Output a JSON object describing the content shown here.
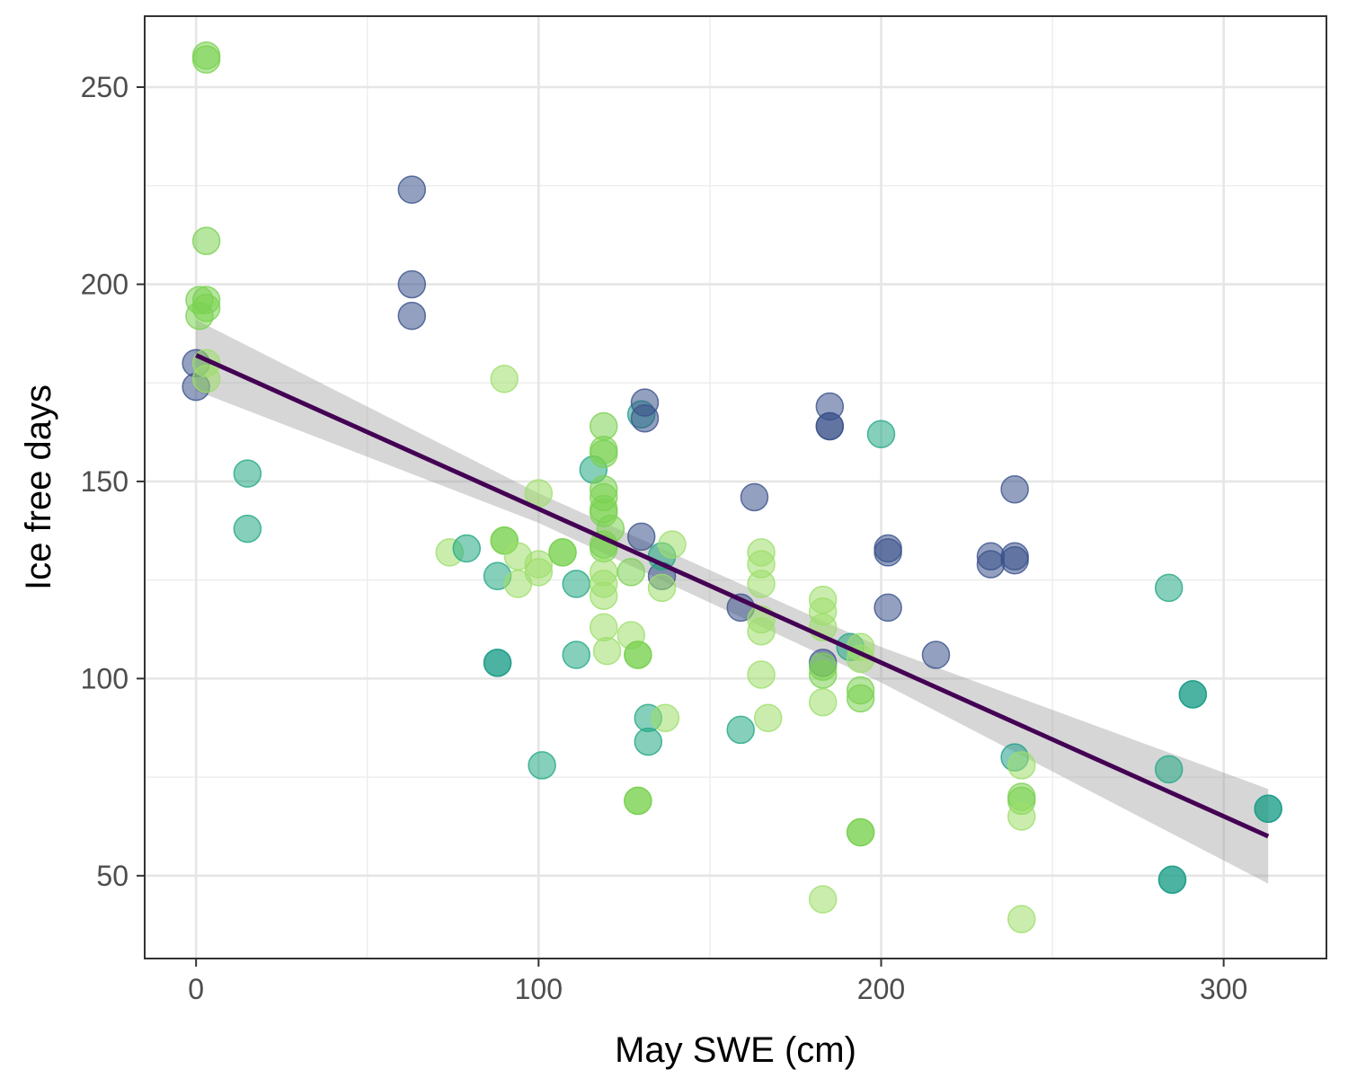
{
  "chart_data": {
    "type": "scatter",
    "title": "",
    "xlabel": "May SWE (cm)",
    "ylabel": "Ice free days",
    "xlim": [
      -15,
      330
    ],
    "ylim": [
      29,
      268
    ],
    "x_ticks": [
      0,
      100,
      200,
      300
    ],
    "y_ticks": [
      50,
      100,
      150,
      200,
      250
    ],
    "x_minor_ticks": [
      50,
      150,
      250
    ],
    "y_minor_ticks": [
      75,
      125,
      175,
      225
    ],
    "grid": true,
    "legend": "none",
    "point_alpha": 0.55,
    "points": [
      {
        "x": 0,
        "y": 180,
        "color": "#3b528b"
      },
      {
        "x": 0,
        "y": 174,
        "color": "#3b528b"
      },
      {
        "x": 1,
        "y": 196,
        "color": "#7ad151"
      },
      {
        "x": 1,
        "y": 192,
        "color": "#7ad151"
      },
      {
        "x": 3,
        "y": 258,
        "color": "#7ad151"
      },
      {
        "x": 3,
        "y": 257,
        "color": "#7ad151"
      },
      {
        "x": 3,
        "y": 211,
        "color": "#7ad151"
      },
      {
        "x": 3,
        "y": 196,
        "color": "#7ad151"
      },
      {
        "x": 3,
        "y": 194,
        "color": "#7ad151"
      },
      {
        "x": 3,
        "y": 180,
        "color": "#9ede6c"
      },
      {
        "x": 3,
        "y": 176,
        "color": "#9ede6c"
      },
      {
        "x": 15,
        "y": 152,
        "color": "#22a884"
      },
      {
        "x": 15,
        "y": 138,
        "color": "#22a884"
      },
      {
        "x": 63,
        "y": 224,
        "color": "#3b528b"
      },
      {
        "x": 63,
        "y": 200,
        "color": "#3b528b"
      },
      {
        "x": 63,
        "y": 192,
        "color": "#3b528b"
      },
      {
        "x": 74,
        "y": 132,
        "color": "#9ede6c"
      },
      {
        "x": 79,
        "y": 133,
        "color": "#22a884"
      },
      {
        "x": 88,
        "y": 126,
        "color": "#22a884"
      },
      {
        "x": 88,
        "y": 104,
        "color": "#1f9e89"
      },
      {
        "x": 88,
        "y": 104,
        "color": "#1f9e89"
      },
      {
        "x": 90,
        "y": 176,
        "color": "#9ede6c"
      },
      {
        "x": 90,
        "y": 135,
        "color": "#7ad151"
      },
      {
        "x": 90,
        "y": 135,
        "color": "#7ad151"
      },
      {
        "x": 94,
        "y": 131,
        "color": "#9ede6c"
      },
      {
        "x": 94,
        "y": 124,
        "color": "#9ede6c"
      },
      {
        "x": 100,
        "y": 147,
        "color": "#9ede6c"
      },
      {
        "x": 100,
        "y": 129,
        "color": "#9ede6c"
      },
      {
        "x": 100,
        "y": 127,
        "color": "#9ede6c"
      },
      {
        "x": 101,
        "y": 78,
        "color": "#22a884"
      },
      {
        "x": 107,
        "y": 132,
        "color": "#7ad151"
      },
      {
        "x": 107,
        "y": 132,
        "color": "#7ad151"
      },
      {
        "x": 111,
        "y": 124,
        "color": "#22a884"
      },
      {
        "x": 111,
        "y": 106,
        "color": "#22a884"
      },
      {
        "x": 116,
        "y": 153,
        "color": "#22a884"
      },
      {
        "x": 119,
        "y": 164,
        "color": "#7ad151"
      },
      {
        "x": 119,
        "y": 158,
        "color": "#7ad151"
      },
      {
        "x": 119,
        "y": 157,
        "color": "#7ad151"
      },
      {
        "x": 119,
        "y": 148,
        "color": "#7ad151"
      },
      {
        "x": 119,
        "y": 146,
        "color": "#7ad151"
      },
      {
        "x": 119,
        "y": 143,
        "color": "#7ad151"
      },
      {
        "x": 119,
        "y": 142,
        "color": "#7ad151"
      },
      {
        "x": 119,
        "y": 134,
        "color": "#7ad151"
      },
      {
        "x": 119,
        "y": 133,
        "color": "#7ad151"
      },
      {
        "x": 119,
        "y": 127,
        "color": "#9ede6c"
      },
      {
        "x": 119,
        "y": 124,
        "color": "#9ede6c"
      },
      {
        "x": 119,
        "y": 121,
        "color": "#9ede6c"
      },
      {
        "x": 119,
        "y": 113,
        "color": "#9ede6c"
      },
      {
        "x": 120,
        "y": 107,
        "color": "#9ede6c"
      },
      {
        "x": 121,
        "y": 138,
        "color": "#7ad151"
      },
      {
        "x": 127,
        "y": 127,
        "color": "#7ad151"
      },
      {
        "x": 127,
        "y": 111,
        "color": "#9ede6c"
      },
      {
        "x": 129,
        "y": 106,
        "color": "#7ad151"
      },
      {
        "x": 129,
        "y": 106,
        "color": "#7ad151"
      },
      {
        "x": 129,
        "y": 69,
        "color": "#7ad151"
      },
      {
        "x": 129,
        "y": 69,
        "color": "#7ad151"
      },
      {
        "x": 130,
        "y": 136,
        "color": "#3b528b"
      },
      {
        "x": 130,
        "y": 167,
        "color": "#1f9e89"
      },
      {
        "x": 131,
        "y": 170,
        "color": "#3b528b"
      },
      {
        "x": 131,
        "y": 166,
        "color": "#3b528b"
      },
      {
        "x": 132,
        "y": 90,
        "color": "#22a884"
      },
      {
        "x": 132,
        "y": 84,
        "color": "#22a884"
      },
      {
        "x": 136,
        "y": 126,
        "color": "#3b528b"
      },
      {
        "x": 136,
        "y": 131,
        "color": "#22a884"
      },
      {
        "x": 136,
        "y": 123,
        "color": "#9ede6c"
      },
      {
        "x": 137,
        "y": 90,
        "color": "#9ede6c"
      },
      {
        "x": 139,
        "y": 134,
        "color": "#9ede6c"
      },
      {
        "x": 159,
        "y": 87,
        "color": "#22a884"
      },
      {
        "x": 159,
        "y": 118,
        "color": "#3b528b"
      },
      {
        "x": 163,
        "y": 146,
        "color": "#3b528b"
      },
      {
        "x": 165,
        "y": 132,
        "color": "#9ede6c"
      },
      {
        "x": 165,
        "y": 129,
        "color": "#9ede6c"
      },
      {
        "x": 165,
        "y": 124,
        "color": "#9ede6c"
      },
      {
        "x": 165,
        "y": 115,
        "color": "#9ede6c"
      },
      {
        "x": 165,
        "y": 112,
        "color": "#9ede6c"
      },
      {
        "x": 165,
        "y": 101,
        "color": "#9ede6c"
      },
      {
        "x": 167,
        "y": 90,
        "color": "#9ede6c"
      },
      {
        "x": 183,
        "y": 120,
        "color": "#9ede6c"
      },
      {
        "x": 183,
        "y": 117,
        "color": "#9ede6c"
      },
      {
        "x": 183,
        "y": 113,
        "color": "#9ede6c"
      },
      {
        "x": 183,
        "y": 104,
        "color": "#3b528b"
      },
      {
        "x": 183,
        "y": 103,
        "color": "#7ad151"
      },
      {
        "x": 183,
        "y": 101,
        "color": "#7ad151"
      },
      {
        "x": 183,
        "y": 94,
        "color": "#9ede6c"
      },
      {
        "x": 183,
        "y": 44,
        "color": "#9ede6c"
      },
      {
        "x": 185,
        "y": 169,
        "color": "#3b528b"
      },
      {
        "x": 185,
        "y": 164,
        "color": "#3b528b"
      },
      {
        "x": 185,
        "y": 164,
        "color": "#3b528b"
      },
      {
        "x": 191,
        "y": 108,
        "color": "#22a884"
      },
      {
        "x": 194,
        "y": 108,
        "color": "#9ede6c"
      },
      {
        "x": 194,
        "y": 105,
        "color": "#9ede6c"
      },
      {
        "x": 194,
        "y": 97,
        "color": "#7ad151"
      },
      {
        "x": 194,
        "y": 95,
        "color": "#7ad151"
      },
      {
        "x": 194,
        "y": 61,
        "color": "#7ad151"
      },
      {
        "x": 194,
        "y": 61,
        "color": "#7ad151"
      },
      {
        "x": 200,
        "y": 162,
        "color": "#22a884"
      },
      {
        "x": 202,
        "y": 133,
        "color": "#3b528b"
      },
      {
        "x": 202,
        "y": 132,
        "color": "#3b528b"
      },
      {
        "x": 202,
        "y": 118,
        "color": "#3b528b"
      },
      {
        "x": 216,
        "y": 106,
        "color": "#3b528b"
      },
      {
        "x": 232,
        "y": 131,
        "color": "#3b528b"
      },
      {
        "x": 232,
        "y": 129,
        "color": "#3b528b"
      },
      {
        "x": 239,
        "y": 148,
        "color": "#3b528b"
      },
      {
        "x": 239,
        "y": 131,
        "color": "#3b528b"
      },
      {
        "x": 239,
        "y": 130,
        "color": "#3b528b"
      },
      {
        "x": 239,
        "y": 80,
        "color": "#1f9e89"
      },
      {
        "x": 241,
        "y": 78,
        "color": "#9ede6c"
      },
      {
        "x": 241,
        "y": 70,
        "color": "#7ad151"
      },
      {
        "x": 241,
        "y": 69,
        "color": "#7ad151"
      },
      {
        "x": 241,
        "y": 65,
        "color": "#9ede6c"
      },
      {
        "x": 241,
        "y": 39,
        "color": "#9ede6c"
      },
      {
        "x": 284,
        "y": 123,
        "color": "#22a884"
      },
      {
        "x": 284,
        "y": 77,
        "color": "#22a884"
      },
      {
        "x": 285,
        "y": 49,
        "color": "#1f9e89"
      },
      {
        "x": 285,
        "y": 49,
        "color": "#1f9e89"
      },
      {
        "x": 291,
        "y": 96,
        "color": "#1f9e89"
      },
      {
        "x": 291,
        "y": 96,
        "color": "#1f9e89"
      },
      {
        "x": 313,
        "y": 67,
        "color": "#1f9e89"
      },
      {
        "x": 313,
        "y": 67,
        "color": "#1f9e89"
      }
    ],
    "trend_line": {
      "x": [
        0,
        313
      ],
      "y": [
        182,
        60
      ],
      "color": "#440154"
    },
    "confidence_band": {
      "x": [
        0,
        100,
        200,
        313
      ],
      "lower": [
        173,
        139.5,
        99,
        48
      ],
      "upper": [
        191,
        147,
        108,
        72
      ],
      "color": "#999999"
    }
  }
}
